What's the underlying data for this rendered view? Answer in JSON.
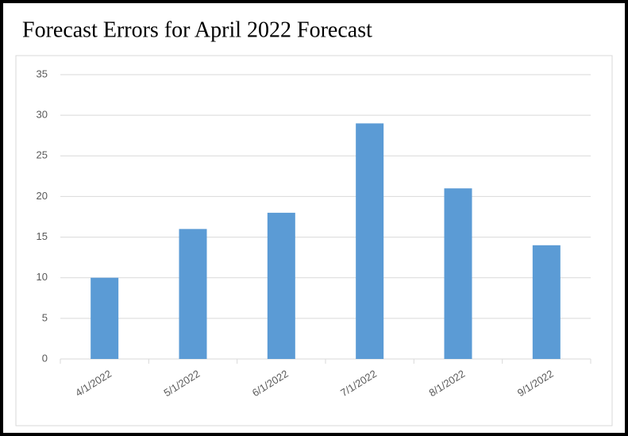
{
  "chart_data": {
    "type": "bar",
    "title": "Forecast Errors for April 2022 Forecast",
    "categories": [
      "4/1/2022",
      "5/1/2022",
      "6/1/2022",
      "7/1/2022",
      "8/1/2022",
      "9/1/2022"
    ],
    "values": [
      10,
      16,
      18,
      29,
      21,
      14
    ],
    "color": "#5b9bd5",
    "ylim": [
      0,
      35
    ],
    "yticks": [
      0,
      5,
      10,
      15,
      20,
      25,
      30,
      35
    ],
    "grid": true
  }
}
